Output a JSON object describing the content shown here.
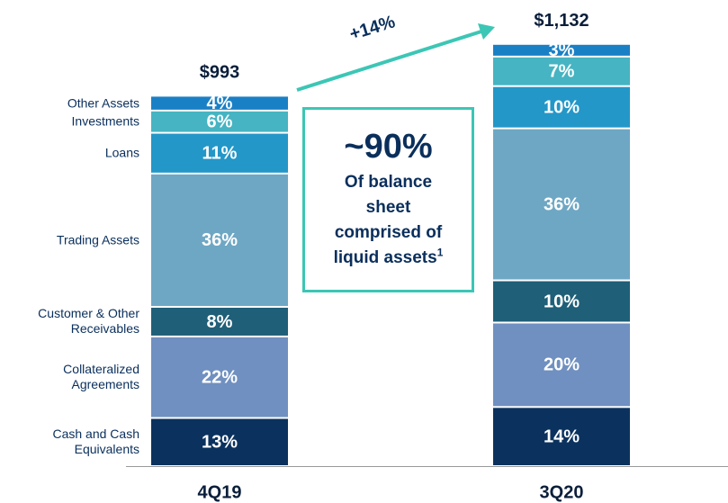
{
  "chart_data": {
    "type": "stacked_bar",
    "categories": [
      "4Q19",
      "3Q20"
    ],
    "totals": {
      "values": [
        993,
        1132
      ],
      "value_labels": [
        "$993",
        "$1,132"
      ]
    },
    "series": [
      {
        "name": "Cash and Cash Equivalents",
        "color": "#0b325e",
        "values": [
          13,
          14
        ],
        "value_labels": [
          "13%",
          "14%"
        ]
      },
      {
        "name": "Collateralized Agreements",
        "color": "#6f90c0",
        "values": [
          22,
          20
        ],
        "value_labels": [
          "22%",
          "20%"
        ]
      },
      {
        "name": "Customer & Other Receivables",
        "color": "#1f5f78",
        "values": [
          8,
          10
        ],
        "value_labels": [
          "8%",
          "10%"
        ]
      },
      {
        "name": "Trading Assets",
        "color": "#6ea7c4",
        "values": [
          36,
          36
        ],
        "value_labels": [
          "36%",
          "36%"
        ]
      },
      {
        "name": "Loans",
        "color": "#2397c8",
        "values": [
          11,
          10
        ],
        "value_labels": [
          "11%",
          "10%"
        ]
      },
      {
        "name": "Investments",
        "color": "#46b4c2",
        "values": [
          6,
          7
        ],
        "value_labels": [
          "6%",
          "7%"
        ]
      },
      {
        "name": "Other Assets",
        "color": "#1a80c6",
        "values": [
          4,
          3
        ],
        "value_labels": [
          "4%",
          "3%"
        ]
      }
    ],
    "annotations": {
      "growth": "+14%",
      "headline": "~90%",
      "note": "Of balance sheet comprised of liquid assets",
      "footnote": "1"
    }
  }
}
